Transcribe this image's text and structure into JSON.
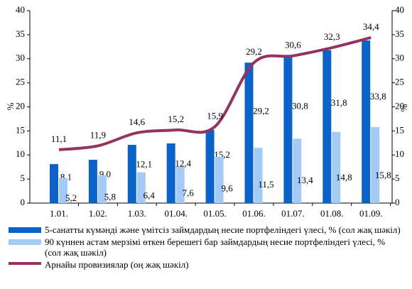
{
  "chart_data": {
    "type": "bar",
    "categories": [
      "1.01.",
      "1.02.",
      "1.03.",
      "01.04.",
      "01.05.",
      "01.06.",
      "01.07.",
      "01.08.",
      "01.09."
    ],
    "ylabel": "%",
    "y2label": "%",
    "ylim": [
      0,
      40
    ],
    "yticks": [
      0,
      5,
      10,
      15,
      20,
      25,
      30,
      35,
      40
    ],
    "y2lim": [
      0,
      40
    ],
    "y2ticks": [
      0,
      5,
      10,
      15,
      20,
      25,
      30,
      35,
      40
    ],
    "series": [
      {
        "name": "5-санатты күмәнді және үмітсіз займдардың несие портфеліндегі үлесі, % (сол жақ шәкіл)",
        "color": "#0b62c9",
        "type": "bar",
        "values": [
          8.1,
          9.0,
          12.1,
          12.4,
          15.2,
          29.2,
          30.8,
          31.8,
          33.8
        ],
        "value_labels": [
          "8,1",
          "9,0",
          "12,1",
          "12,4",
          "15,2",
          "29,2",
          "30,8",
          "31,8",
          "33,8"
        ]
      },
      {
        "name": "90 күннен астам мерзімі өткен берешегі бар займдардың несие портфеліндегі үлесі, % (сол жақ шәкіл)",
        "color": "#a3cbf5",
        "type": "bar",
        "values": [
          5.2,
          5.8,
          6.4,
          7.6,
          9.6,
          11.5,
          13.4,
          14.8,
          15.8
        ],
        "value_labels": [
          "5,2",
          "5,8",
          "6,4",
          "7,6",
          "9,6",
          "11,5",
          "13,4",
          "14,8",
          "15,8"
        ]
      },
      {
        "name": "Арнайы провизиялар (оң жақ шәкіл)",
        "color": "#943260",
        "type": "line",
        "axis": "y2",
        "values": [
          11.1,
          11.9,
          14.6,
          15.2,
          15.9,
          29.2,
          30.6,
          32.3,
          34.4
        ],
        "value_labels": [
          "11,1",
          "11,9",
          "14,6",
          "15,2",
          "15,9",
          "29,2",
          "30,6",
          "32,3",
          "34,4"
        ]
      }
    ]
  }
}
